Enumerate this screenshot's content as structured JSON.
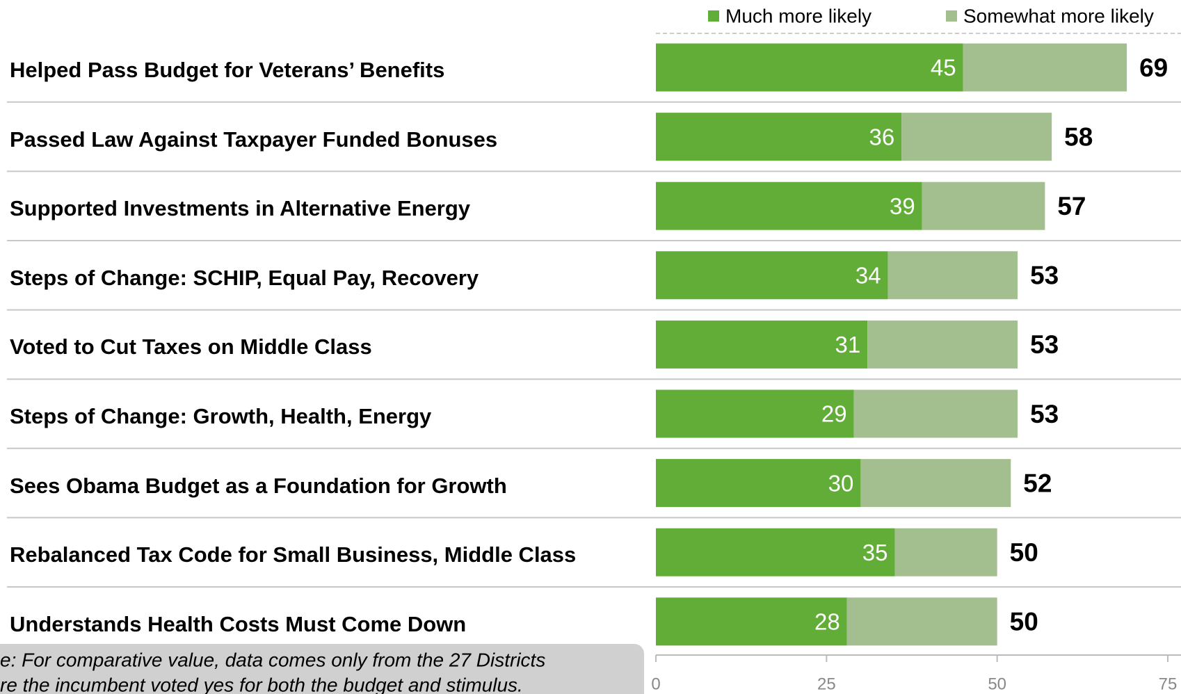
{
  "chart_data": {
    "type": "stacked_bar_horizontal",
    "categories": [
      "Helped Pass Budget for Veterans’ Benefits",
      "Passed Law Against Taxpayer Funded Bonuses",
      "Supported Investments in Alternative Energy",
      "Steps of Change: SCHIP, Equal Pay, Recovery",
      "Voted to Cut Taxes on Middle Class",
      "Steps of Change: Growth, Health, Energy",
      "Sees Obama Budget as a Foundation for Growth",
      "Rebalanced Tax Code for Small Business, Middle Class",
      "Understands Health Costs Must Come Down"
    ],
    "series": [
      {
        "name": "Much more likely",
        "color": "#62ad37",
        "values": [
          45,
          36,
          39,
          34,
          31,
          29,
          30,
          35,
          28
        ]
      },
      {
        "name": "Somewhat more likely",
        "color": "#a3bf8f",
        "values": [
          24,
          22,
          18,
          19,
          22,
          24,
          22,
          15,
          22
        ]
      }
    ],
    "totals": [
      69,
      58,
      57,
      53,
      53,
      53,
      52,
      50,
      50
    ],
    "xlim": [
      0,
      75
    ],
    "xticks": [
      0,
      25,
      50,
      75
    ],
    "note": [
      "e: For comparative value, data comes only from the 27 Districts",
      "re the incumbent voted yes for both the budget and stimulus."
    ]
  }
}
